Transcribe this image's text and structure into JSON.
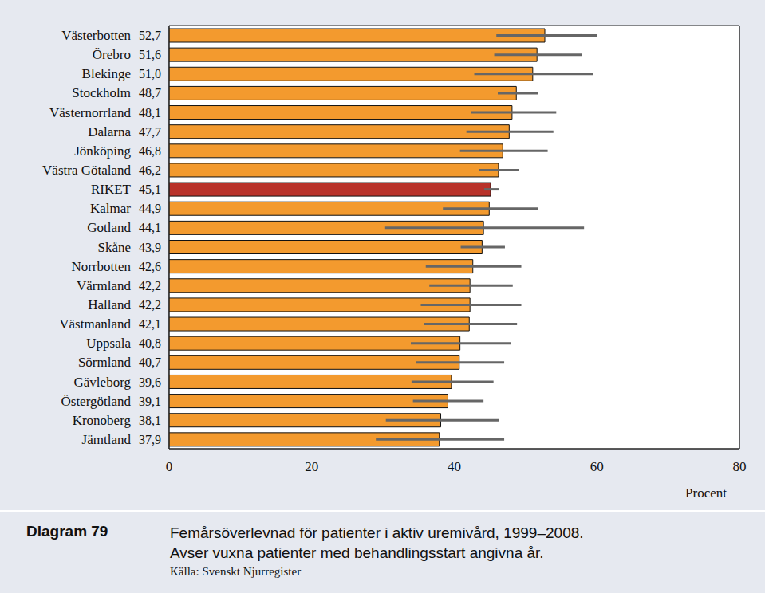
{
  "chart_data": {
    "type": "bar",
    "orientation": "horizontal",
    "figure_label": "Diagram 79",
    "title": "Femårsöverlevnad för patienter i aktiv uremivård, 1999–2008.",
    "subtitle": "Avser vuxna patienter med behandlingsstart angivna år.",
    "source": "Källa: Svenskt Njurregister",
    "x_label": "Procent",
    "categories": [
      "Västerbotten",
      "Örebro",
      "Blekinge",
      "Stockholm",
      "Västernorrland",
      "Dalarna",
      "Jönköping",
      "Västra Götaland",
      "RIKET",
      "Kalmar",
      "Gotland",
      "Skåne",
      "Norrbotten",
      "Värmland",
      "Halland",
      "Västmanland",
      "Uppsala",
      "Sörmland",
      "Gävleborg",
      "Östergötland",
      "Kronoberg",
      "Jämtland"
    ],
    "values": [
      52.7,
      51.6,
      51.0,
      48.7,
      48.1,
      47.7,
      46.8,
      46.2,
      45.1,
      44.9,
      44.1,
      43.9,
      42.6,
      42.2,
      42.2,
      42.1,
      40.8,
      40.7,
      39.6,
      39.1,
      38.1,
      37.9
    ],
    "value_labels": [
      "52,7",
      "51,6",
      "51,0",
      "48,7",
      "48,1",
      "47,7",
      "46,8",
      "46,2",
      "45,1",
      "44,9",
      "44,1",
      "43,9",
      "42,6",
      "42,2",
      "42,2",
      "42,1",
      "40,8",
      "40,7",
      "39,6",
      "39,1",
      "38,1",
      "37,9"
    ],
    "error_low": [
      45.9,
      45.6,
      42.8,
      46.1,
      42.3,
      41.7,
      40.8,
      43.5,
      44.2,
      38.4,
      30.3,
      40.9,
      36.0,
      36.5,
      35.3,
      35.7,
      33.9,
      34.6,
      34.0,
      34.2,
      30.4,
      29.0
    ],
    "error_high": [
      60.0,
      57.9,
      59.5,
      51.7,
      54.3,
      53.9,
      53.1,
      49.1,
      46.3,
      51.7,
      58.2,
      47.1,
      49.4,
      48.2,
      49.4,
      48.8,
      48.0,
      47.0,
      45.5,
      44.1,
      46.3,
      47.0
    ],
    "colors": [
      "#f39a2e",
      "#f39a2e",
      "#f39a2e",
      "#f39a2e",
      "#f39a2e",
      "#f39a2e",
      "#f39a2e",
      "#f39a2e",
      "#b8322a",
      "#f39a2e",
      "#f39a2e",
      "#f39a2e",
      "#f39a2e",
      "#f39a2e",
      "#f39a2e",
      "#f39a2e",
      "#f39a2e",
      "#f39a2e",
      "#f39a2e",
      "#f39a2e",
      "#f39a2e",
      "#f39a2e"
    ],
    "xlim": [
      0,
      80
    ],
    "xticks": [
      0,
      20,
      40,
      60,
      80
    ],
    "grid": true,
    "data_labels": true
  }
}
